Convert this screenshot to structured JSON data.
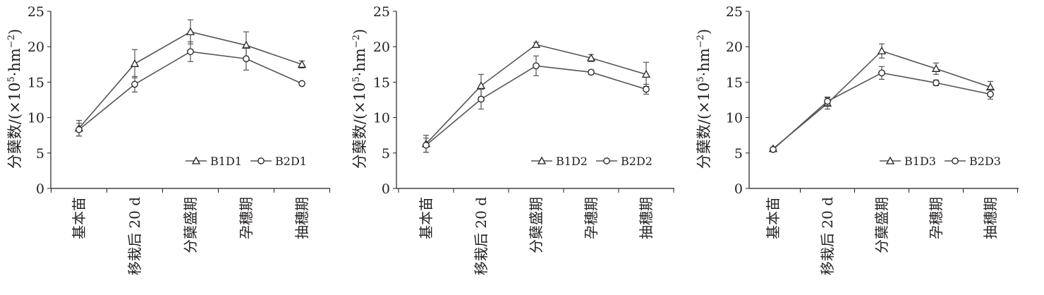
{
  "chart_data": [
    {
      "type": "line",
      "title": "",
      "xlabel": "",
      "ylabel_main": "分蘖数/(×10",
      "ylabel_sup1": "5",
      "ylabel_mid": "·hm",
      "ylabel_sup2": "−2",
      "ylabel_end": ")",
      "ylim": [
        0,
        25
      ],
      "yticks": [
        "0",
        "5",
        "10",
        "15",
        "20",
        "25"
      ],
      "categories": [
        "基本苗",
        "移栽后 20 d",
        "分蘖盛期",
        "孕穗期",
        "抽穗期"
      ],
      "legend_position": "lower-right",
      "grid": false,
      "series": [
        {
          "name": "B1D1",
          "marker": "triangle",
          "values": [
            8.5,
            17.6,
            22.1,
            20.2,
            17.5
          ],
          "errors": [
            1.1,
            2.0,
            1.7,
            1.9,
            0.5
          ]
        },
        {
          "name": "B2D1",
          "marker": "circle",
          "values": [
            8.3,
            14.7,
            19.3,
            18.3,
            14.8
          ],
          "errors": [
            0.9,
            1.1,
            1.4,
            1.6,
            0.2
          ]
        }
      ]
    },
    {
      "type": "line",
      "title": "",
      "xlabel": "",
      "ylabel_main": "分蘖数/(×10",
      "ylabel_sup1": "5",
      "ylabel_mid": "·hm",
      "ylabel_sup2": "−2",
      "ylabel_end": ")",
      "ylim": [
        0,
        25
      ],
      "yticks": [
        "0",
        "5",
        "10",
        "15",
        "20",
        "25"
      ],
      "categories": [
        "基本苗",
        "移栽后 20 d",
        "分蘖盛期",
        "孕穗期",
        "抽穗期"
      ],
      "legend_position": "lower-right",
      "grid": false,
      "series": [
        {
          "name": "B1D2",
          "marker": "triangle",
          "values": [
            6.3,
            14.5,
            20.3,
            18.4,
            16.1
          ],
          "errors": [
            1.2,
            1.6,
            0.3,
            0.5,
            1.7
          ]
        },
        {
          "name": "B2D2",
          "marker": "circle",
          "values": [
            6.1,
            12.6,
            17.3,
            16.4,
            14.0
          ],
          "errors": [
            1.0,
            1.4,
            1.4,
            0.3,
            0.7
          ]
        }
      ]
    },
    {
      "type": "line",
      "title": "",
      "xlabel": "",
      "ylabel_main": "分蘖数/(×10",
      "ylabel_sup1": "5",
      "ylabel_mid": "·hm",
      "ylabel_sup2": "−2",
      "ylabel_end": ")",
      "ylim": [
        0,
        25
      ],
      "yticks": [
        "0",
        "5",
        "10",
        "15",
        "20",
        "25"
      ],
      "categories": [
        "基本苗",
        "移栽后 20 d",
        "分蘖盛期",
        "孕穗期",
        "抽穗期"
      ],
      "legend_position": "lower-right",
      "grid": false,
      "series": [
        {
          "name": "B1D3",
          "marker": "triangle",
          "values": [
            5.6,
            12.0,
            19.4,
            16.9,
            14.3
          ],
          "errors": [
            0.2,
            0.8,
            1.0,
            0.8,
            0.8
          ]
        },
        {
          "name": "B2D3",
          "marker": "circle",
          "values": [
            5.5,
            12.3,
            16.3,
            14.9,
            13.3
          ],
          "errors": [
            0.2,
            0.6,
            0.9,
            0.4,
            0.7
          ]
        }
      ]
    }
  ]
}
